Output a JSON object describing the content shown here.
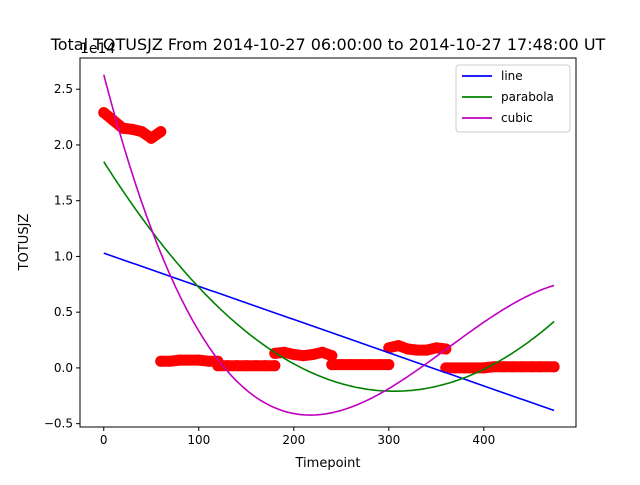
{
  "chart_data": {
    "type": "scatter",
    "title": "Total TOTUSJZ From 2014-10-27 06:00:00 to 2014-10-27 17:48:00 UT",
    "xlabel": "Timepoint",
    "ylabel": "TOTUSJZ",
    "offset_text": "1e14",
    "xlim": [
      -25,
      497
    ],
    "ylim": [
      -0.53,
      2.78
    ],
    "x_ticks": [
      0,
      100,
      200,
      300,
      400
    ],
    "y_ticks": [
      -0.5,
      0.0,
      0.5,
      1.0,
      1.5,
      2.0,
      2.5
    ],
    "x_tick_labels": [
      "0",
      "100",
      "200",
      "300",
      "400"
    ],
    "y_tick_labels": [
      "−0.5",
      "0.0",
      "0.5",
      "1.0",
      "1.5",
      "2.0",
      "2.5"
    ],
    "grid": false,
    "legend_position": "top-right",
    "scatter": {
      "color": "#ff0000",
      "segments": [
        {
          "x": [
            0,
            10,
            20,
            30,
            40,
            50,
            60
          ],
          "y": [
            2.29,
            2.22,
            2.15,
            2.14,
            2.12,
            2.06,
            2.12
          ]
        },
        {
          "x": [
            60,
            70,
            80,
            90,
            100,
            110,
            120
          ],
          "y": [
            0.06,
            0.06,
            0.07,
            0.07,
            0.07,
            0.06,
            0.06
          ]
        },
        {
          "x": [
            120,
            130,
            140,
            150,
            160,
            170,
            180
          ],
          "y": [
            0.02,
            0.02,
            0.02,
            0.02,
            0.02,
            0.02,
            0.02
          ]
        },
        {
          "x": [
            180,
            190,
            200,
            210,
            220,
            230,
            240
          ],
          "y": [
            0.13,
            0.14,
            0.12,
            0.11,
            0.12,
            0.14,
            0.11
          ]
        },
        {
          "x": [
            240,
            250,
            260,
            270,
            280,
            290,
            300
          ],
          "y": [
            0.03,
            0.03,
            0.03,
            0.03,
            0.03,
            0.03,
            0.03
          ]
        },
        {
          "x": [
            300,
            310,
            320,
            330,
            340,
            350,
            360
          ],
          "y": [
            0.18,
            0.2,
            0.17,
            0.16,
            0.16,
            0.18,
            0.17
          ]
        },
        {
          "x": [
            360,
            370,
            380,
            390,
            400,
            410,
            420,
            430,
            440,
            450,
            460,
            474
          ],
          "y": [
            0.0,
            0.0,
            0.0,
            0.0,
            0.0,
            0.01,
            0.01,
            0.01,
            0.01,
            0.01,
            0.01,
            0.01
          ]
        }
      ]
    },
    "series": [
      {
        "name": "line",
        "color": "#0000ff",
        "coefficients": [
          1.03,
          -0.002979
        ]
      },
      {
        "name": "parabola",
        "color": "#008000",
        "coefficients": [
          1.85,
          -0.013476,
          2.205e-05
        ]
      },
      {
        "name": "cubic",
        "color": "#bf00bf",
        "coefficients": [
          2.63,
          -0.03276,
          0.0001076,
          -9.894e-08
        ]
      }
    ],
    "fit_x_range": [
      0,
      474
    ]
  }
}
